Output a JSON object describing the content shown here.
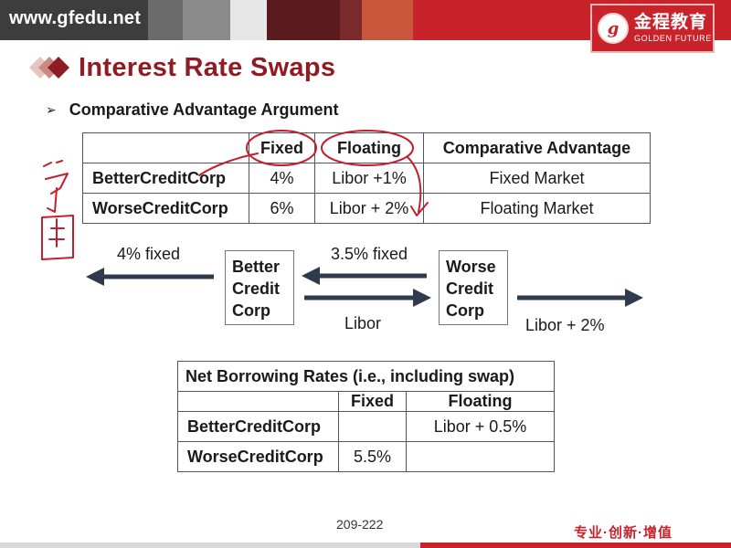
{
  "header": {
    "site": "www.gfedu.net",
    "band_colors": [
      "#3d3d3d",
      "#6b6b6b",
      "#8a8a8a",
      "#e7e7e7",
      "#5a1a1e",
      "#7a2a2a",
      "#c9553a",
      "#c8222b"
    ],
    "logo": {
      "seal_glyph": "g",
      "name_cn": "金程教育",
      "name_en": "GOLDEN FUTURE"
    }
  },
  "slide": {
    "title": "Interest Rate Swaps",
    "bullet": "Comparative Advantage Argument"
  },
  "table1": {
    "headers": [
      "",
      "Fixed",
      "Floating",
      "Comparative Advantage"
    ],
    "rows": [
      [
        "BetterCreditCorp",
        "4%",
        "Libor +1%",
        "Fixed Market"
      ],
      [
        "WorseCreditCorp",
        "6%",
        "Libor + 2%",
        "Floating Market"
      ]
    ]
  },
  "flow": {
    "left_box": "Better Credit Corp",
    "right_box": "Worse Credit Corp",
    "left_out_label": "4% fixed",
    "top_label": "3.5% fixed",
    "bottom_label": "Libor",
    "right_out_label": "Libor + 2%"
  },
  "table2": {
    "caption": "Net Borrowing Rates (i.e., including swap)",
    "headers": [
      "",
      "Fixed",
      "Floating"
    ],
    "rows": [
      [
        "BetterCreditCorp",
        "",
        "Libor + 0.5%"
      ],
      [
        "WorseCreditCorp",
        "5.5%",
        ""
      ]
    ]
  },
  "footer": {
    "page": "209-222",
    "slogan": "专业·创新·增值"
  },
  "colors": {
    "title": "#8f1c22",
    "brand_red": "#c8222b",
    "annotation": "#c41f2e",
    "arrow": "#2f3b4c"
  }
}
